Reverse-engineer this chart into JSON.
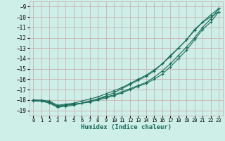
{
  "xlabel": "Humidex (Indice chaleur)",
  "ylabel": "",
  "bg_color": "#ceeee8",
  "grid_color": "#c8a8a8",
  "line_color": "#1a6b5a",
  "xlim": [
    -0.5,
    23.5
  ],
  "ylim": [
    -19.5,
    -8.5
  ],
  "xticks": [
    0,
    1,
    2,
    3,
    4,
    5,
    6,
    7,
    8,
    9,
    10,
    11,
    12,
    13,
    14,
    15,
    16,
    17,
    18,
    19,
    20,
    21,
    22,
    23
  ],
  "yticks": [
    -19,
    -18,
    -17,
    -16,
    -15,
    -14,
    -13,
    -12,
    -11,
    -10,
    -9
  ],
  "line1_x": [
    0,
    1,
    2,
    3,
    4,
    5,
    6,
    7,
    8,
    9,
    10,
    11,
    12,
    13,
    14,
    15,
    16,
    17,
    18,
    19,
    20,
    21,
    22,
    23
  ],
  "line1_y": [
    -18.0,
    -18.1,
    -18.2,
    -18.6,
    -18.5,
    -18.4,
    -18.3,
    -18.2,
    -18.0,
    -17.8,
    -17.6,
    -17.3,
    -17.0,
    -16.7,
    -16.4,
    -16.0,
    -15.5,
    -14.8,
    -14.0,
    -13.2,
    -12.2,
    -11.2,
    -10.5,
    -9.5
  ],
  "line2_x": [
    0,
    1,
    2,
    3,
    4,
    5,
    6,
    7,
    8,
    9,
    10,
    11,
    12,
    13,
    14,
    15,
    16,
    17,
    18,
    19,
    20,
    21,
    22,
    23
  ],
  "line2_y": [
    -18.0,
    -18.1,
    -18.2,
    -18.6,
    -18.5,
    -18.4,
    -18.3,
    -18.1,
    -17.9,
    -17.7,
    -17.5,
    -17.2,
    -16.9,
    -16.6,
    -16.3,
    -15.8,
    -15.2,
    -14.5,
    -13.7,
    -12.9,
    -12.0,
    -11.0,
    -10.2,
    -9.2
  ],
  "line3_x": [
    0,
    1,
    2,
    3,
    4,
    5,
    6,
    7,
    8,
    9,
    10,
    11,
    12,
    13,
    14,
    15,
    16,
    17,
    18,
    19,
    20,
    21,
    22,
    23
  ],
  "line3_y": [
    -18.0,
    -18.0,
    -18.1,
    -18.5,
    -18.4,
    -18.3,
    -18.1,
    -17.9,
    -17.7,
    -17.4,
    -17.1,
    -16.8,
    -16.4,
    -16.0,
    -15.6,
    -15.1,
    -14.5,
    -13.7,
    -13.0,
    -12.2,
    -11.2,
    -10.5,
    -10.0,
    -9.5
  ],
  "line4_x": [
    0,
    1,
    2,
    3,
    4,
    5,
    6,
    7,
    8,
    9,
    10,
    11,
    12,
    13,
    14,
    15,
    16,
    17,
    18,
    19,
    20,
    21,
    22,
    23
  ],
  "line4_y": [
    -18.1,
    -18.1,
    -18.3,
    -18.7,
    -18.6,
    -18.5,
    -18.3,
    -18.1,
    -17.9,
    -17.6,
    -17.3,
    -16.9,
    -16.5,
    -16.1,
    -15.7,
    -15.2,
    -14.5,
    -13.8,
    -13.0,
    -12.2,
    -11.3,
    -10.5,
    -9.8,
    -9.2
  ]
}
